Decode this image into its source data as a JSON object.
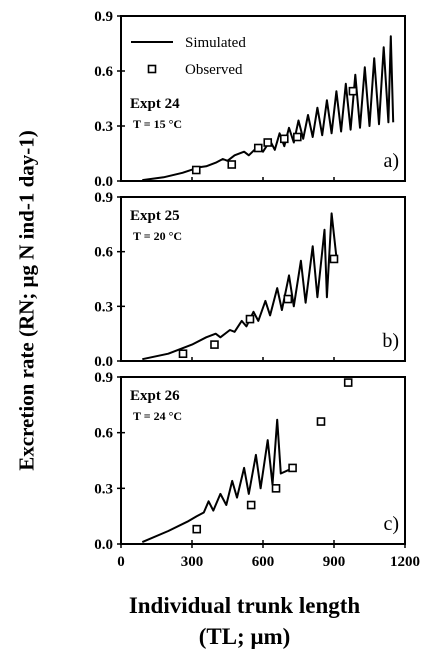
{
  "figure": {
    "ylabel_line": "Excretion rate (RN; μg N ind-1 day-1)",
    "xlabel_line1": "Individual trunk length",
    "xlabel_line2": "(TL; μm)"
  },
  "chart_data": [
    {
      "type": "line",
      "panel_label": "a)",
      "title": "Expt 24",
      "subtitle": "T = 15 °C",
      "legend": [
        "Simulated",
        "Observed"
      ],
      "legend_position": "top-left",
      "xlim": [
        0,
        1200
      ],
      "ylim": [
        0,
        0.9
      ],
      "yticks": [
        "0.0",
        "0.3",
        "0.6",
        "0.9"
      ],
      "grid": false,
      "series": [
        {
          "name": "Simulated",
          "style": "line",
          "points": [
            [
              90,
              0.005
            ],
            [
              180,
              0.02
            ],
            [
              260,
              0.045
            ],
            [
              330,
              0.075
            ],
            [
              360,
              0.08
            ],
            [
              400,
              0.1
            ],
            [
              430,
              0.12
            ],
            [
              450,
              0.11
            ],
            [
              480,
              0.14
            ],
            [
              520,
              0.16
            ],
            [
              540,
              0.14
            ],
            [
              580,
              0.19
            ],
            [
              600,
              0.16
            ],
            [
              630,
              0.22
            ],
            [
              650,
              0.17
            ],
            [
              670,
              0.26
            ],
            [
              690,
              0.19
            ],
            [
              710,
              0.29
            ],
            [
              730,
              0.21
            ],
            [
              750,
              0.33
            ],
            [
              770,
              0.23
            ],
            [
              790,
              0.36
            ],
            [
              810,
              0.24
            ],
            [
              830,
              0.4
            ],
            [
              850,
              0.25
            ],
            [
              870,
              0.44
            ],
            [
              890,
              0.26
            ],
            [
              910,
              0.49
            ],
            [
              930,
              0.27
            ],
            [
              950,
              0.53
            ],
            [
              970,
              0.28
            ],
            [
              990,
              0.58
            ],
            [
              1010,
              0.29
            ],
            [
              1030,
              0.62
            ],
            [
              1050,
              0.3
            ],
            [
              1070,
              0.67
            ],
            [
              1090,
              0.31
            ],
            [
              1110,
              0.73
            ],
            [
              1130,
              0.32
            ],
            [
              1140,
              0.79
            ],
            [
              1150,
              0.32
            ]
          ]
        },
        {
          "name": "Observed",
          "style": "square-markers",
          "points": [
            [
              318,
              0.06
            ],
            [
              468,
              0.09
            ],
            [
              580,
              0.18
            ],
            [
              620,
              0.21
            ],
            [
              690,
              0.23
            ],
            [
              745,
              0.24
            ],
            [
              980,
              0.49
            ]
          ]
        }
      ]
    },
    {
      "type": "line",
      "panel_label": "b)",
      "title": "Expt 25",
      "subtitle": "T = 20 °C",
      "xlim": [
        0,
        1200
      ],
      "ylim": [
        0,
        0.9
      ],
      "yticks": [
        "0.0",
        "0.3",
        "0.6",
        "0.9"
      ],
      "grid": false,
      "series": [
        {
          "name": "Simulated",
          "style": "line",
          "points": [
            [
              90,
              0.01
            ],
            [
              200,
              0.04
            ],
            [
              300,
              0.09
            ],
            [
              360,
              0.13
            ],
            [
              400,
              0.15
            ],
            [
              420,
              0.13
            ],
            [
              460,
              0.17
            ],
            [
              480,
              0.16
            ],
            [
              510,
              0.22
            ],
            [
              530,
              0.19
            ],
            [
              560,
              0.27
            ],
            [
              580,
              0.22
            ],
            [
              610,
              0.33
            ],
            [
              630,
              0.25
            ],
            [
              660,
              0.4
            ],
            [
              680,
              0.28
            ],
            [
              710,
              0.47
            ],
            [
              730,
              0.3
            ],
            [
              760,
              0.55
            ],
            [
              780,
              0.32
            ],
            [
              810,
              0.63
            ],
            [
              830,
              0.35
            ],
            [
              860,
              0.72
            ],
            [
              870,
              0.35
            ],
            [
              890,
              0.81
            ],
            [
              910,
              0.57
            ]
          ]
        },
        {
          "name": "Observed",
          "style": "square-markers",
          "points": [
            [
              262,
              0.04
            ],
            [
              395,
              0.09
            ],
            [
              545,
              0.23
            ],
            [
              705,
              0.34
            ],
            [
              900,
              0.56
            ]
          ]
        }
      ]
    },
    {
      "type": "line",
      "panel_label": "c)",
      "title": "Expt 26",
      "subtitle": "T = 24 °C",
      "xlim": [
        0,
        1200
      ],
      "ylim": [
        0,
        0.9
      ],
      "yticks": [
        "0.0",
        "0.3",
        "0.6",
        "0.9"
      ],
      "xticks": [
        "0",
        "300",
        "600",
        "900",
        "1200"
      ],
      "grid": false,
      "series": [
        {
          "name": "Simulated",
          "style": "line",
          "points": [
            [
              90,
              0.01
            ],
            [
              200,
              0.07
            ],
            [
              280,
              0.12
            ],
            [
              320,
              0.15
            ],
            [
              350,
              0.17
            ],
            [
              370,
              0.23
            ],
            [
              390,
              0.18
            ],
            [
              420,
              0.27
            ],
            [
              445,
              0.21
            ],
            [
              470,
              0.34
            ],
            [
              490,
              0.25
            ],
            [
              520,
              0.41
            ],
            [
              540,
              0.27
            ],
            [
              570,
              0.48
            ],
            [
              590,
              0.3
            ],
            [
              620,
              0.56
            ],
            [
              640,
              0.32
            ],
            [
              660,
              0.67
            ],
            [
              675,
              0.38
            ],
            [
              710,
              0.4
            ]
          ]
        },
        {
          "name": "Observed",
          "style": "square-markers",
          "points": [
            [
              320,
              0.08
            ],
            [
              550,
              0.21
            ],
            [
              655,
              0.3
            ],
            [
              725,
              0.41
            ],
            [
              845,
              0.66
            ],
            [
              960,
              0.87
            ]
          ]
        }
      ]
    }
  ]
}
